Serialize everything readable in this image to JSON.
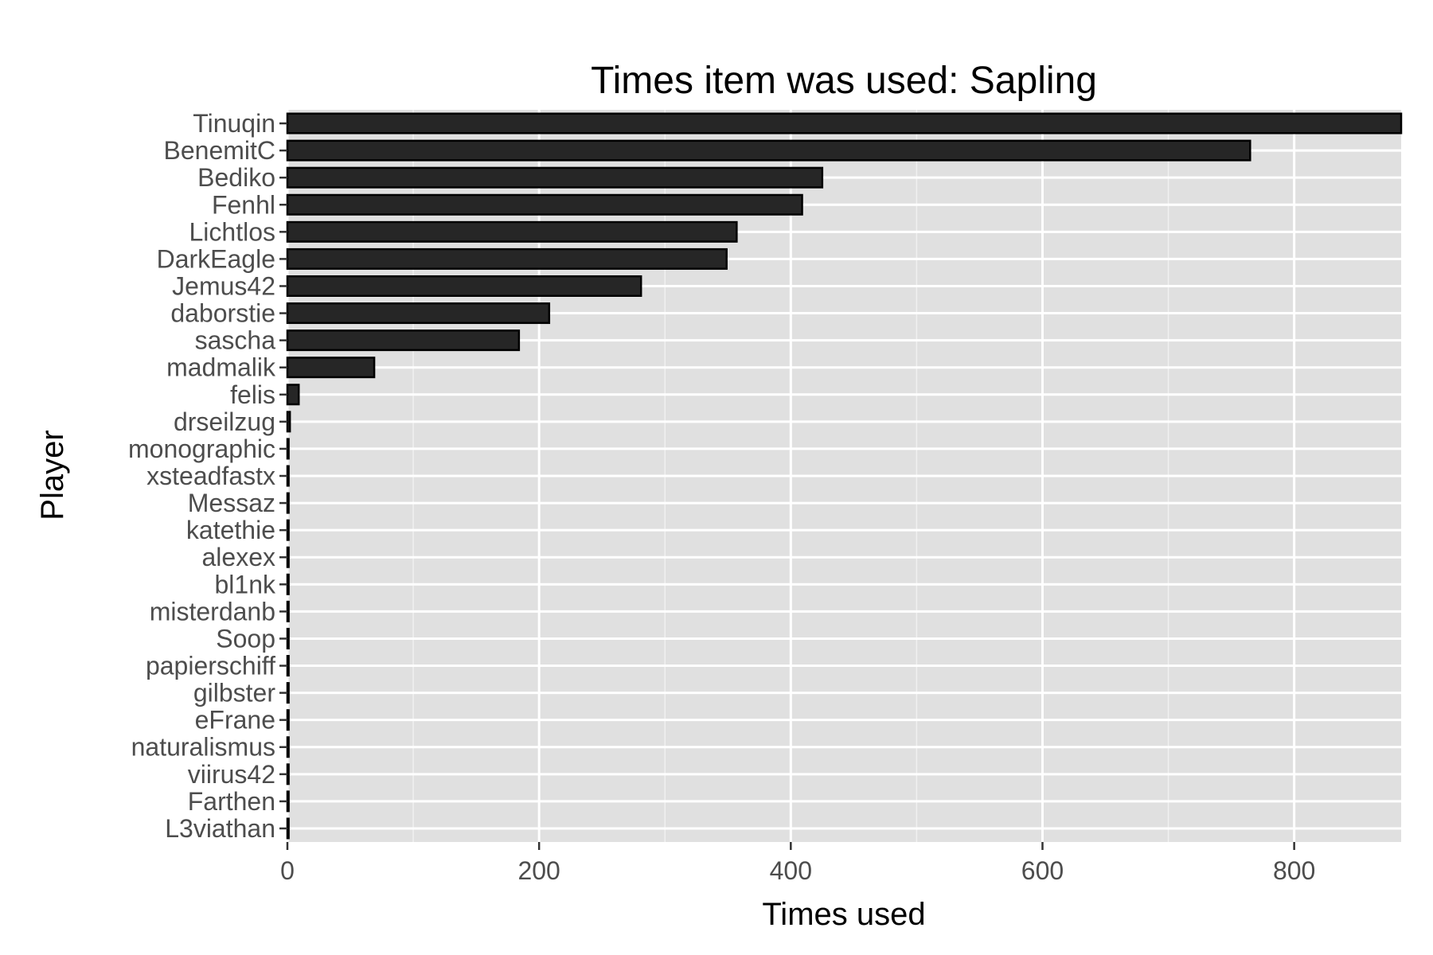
{
  "chart_data": {
    "type": "bar",
    "orientation": "horizontal",
    "title": "Times item was used: Sapling",
    "xlabel": "Times used",
    "ylabel": "Player",
    "xlim": [
      0,
      885
    ],
    "xticks": [
      0,
      200,
      400,
      600,
      800
    ],
    "grid": true,
    "colors": {
      "panel": "#e0e0e0",
      "gridline": "#ffffff",
      "bar_fill": "#262626",
      "bar_edge": "#000000",
      "tick_text": "#4d4d4d",
      "tick_mark": "#333333"
    },
    "categories": [
      "Tinuqin",
      "BenemitC",
      "Bediko",
      "Fenhl",
      "Lichtlos",
      "DarkEagle",
      "Jemus42",
      "daborstie",
      "sascha",
      "madmalik",
      "felis",
      "drseilzug",
      "monographic",
      "xsteadfastx",
      "Messaz",
      "katethie",
      "alexex",
      "bl1nk",
      "misterdanb",
      "Soop",
      "papierschiff",
      "gilbster",
      "eFrane",
      "naturalismus",
      "viirus42",
      "Farthen",
      "L3viathan"
    ],
    "values": [
      885,
      765,
      425,
      409,
      357,
      349,
      281,
      208,
      184,
      69,
      9,
      2,
      1,
      1,
      1,
      1,
      1,
      1,
      1,
      1,
      1,
      1,
      1,
      1,
      1,
      1,
      1
    ]
  }
}
